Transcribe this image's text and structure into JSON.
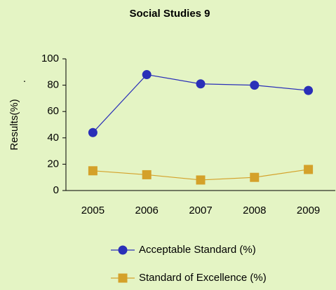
{
  "chart_data": {
    "type": "line",
    "title": "Social Studies 9",
    "ylabel": "Results(%)",
    "annotation": ".",
    "categories": [
      "2005",
      "2006",
      "2007",
      "2008",
      "2009"
    ],
    "series": [
      {
        "name": "Acceptable Standard (%)",
        "color": "#2a2fb8",
        "marker": "circle",
        "values": [
          44,
          88,
          81,
          80,
          76
        ]
      },
      {
        "name": "Standard of Excellence (%)",
        "color": "#d4a12a",
        "marker": "square",
        "values": [
          15,
          12,
          8,
          10,
          16
        ]
      }
    ],
    "ylim": [
      0,
      100
    ],
    "yticks": [
      0,
      20,
      40,
      60,
      80,
      100
    ],
    "grid": false,
    "legend": "bottom"
  }
}
